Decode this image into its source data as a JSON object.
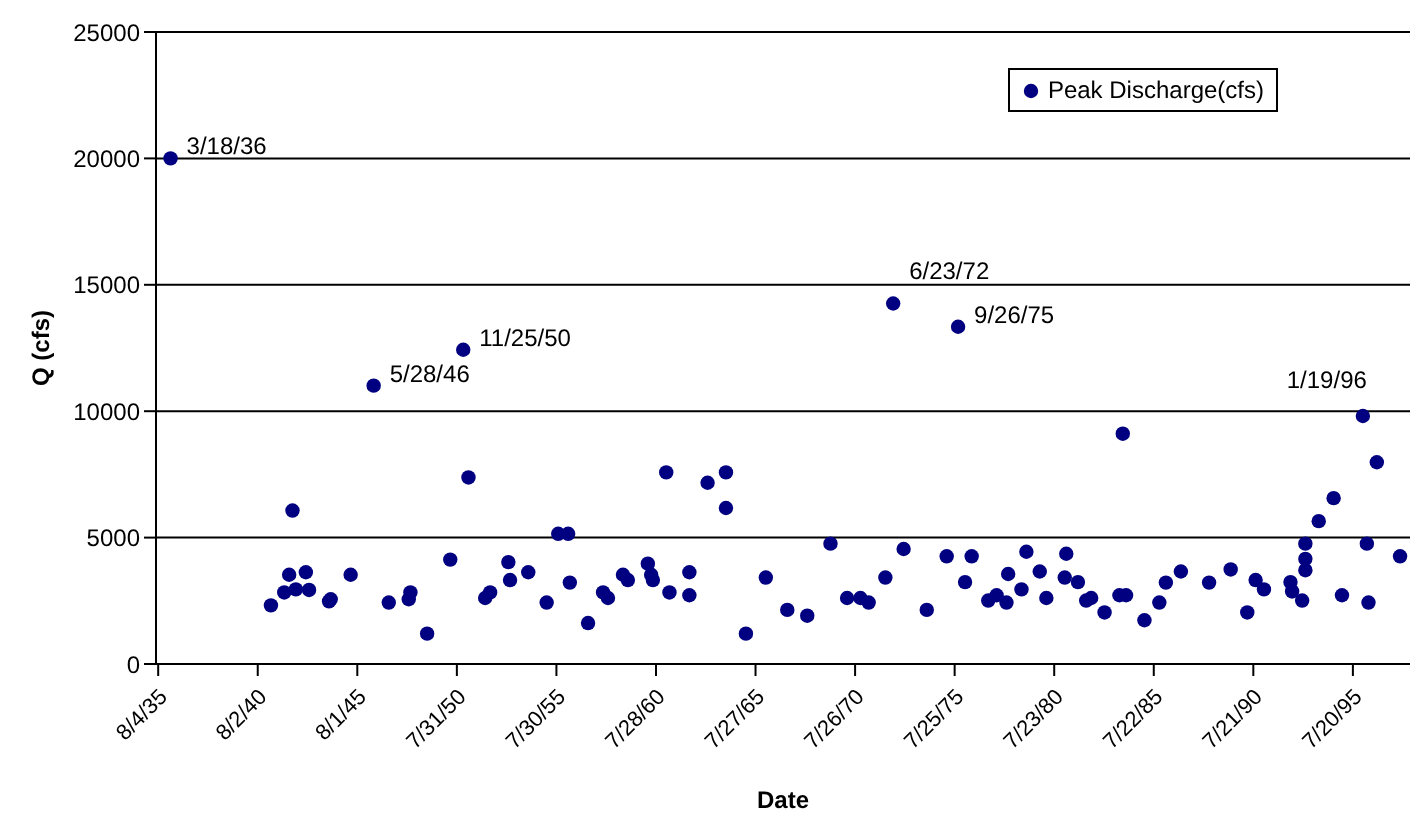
{
  "chart_data": {
    "type": "scatter",
    "xlabel": "Date",
    "ylabel": "Q (cfs)",
    "xlim": [
      "1935-06-25",
      "1998-06-01"
    ],
    "ylim": [
      0,
      25000
    ],
    "xticks": [
      {
        "value": "1935-08-04",
        "label": "8/4/35"
      },
      {
        "value": "1940-08-02",
        "label": "8/2/40"
      },
      {
        "value": "1945-08-01",
        "label": "8/1/45"
      },
      {
        "value": "1950-07-31",
        "label": "7/31/50"
      },
      {
        "value": "1955-07-30",
        "label": "7/30/55"
      },
      {
        "value": "1960-07-28",
        "label": "7/28/60"
      },
      {
        "value": "1965-07-27",
        "label": "7/27/65"
      },
      {
        "value": "1970-07-26",
        "label": "7/26/70"
      },
      {
        "value": "1975-07-25",
        "label": "7/25/75"
      },
      {
        "value": "1980-07-23",
        "label": "7/23/80"
      },
      {
        "value": "1985-07-22",
        "label": "7/22/85"
      },
      {
        "value": "1990-07-21",
        "label": "7/21/90"
      },
      {
        "value": "1995-07-20",
        "label": "7/20/95"
      }
    ],
    "yticks": [
      0,
      5000,
      10000,
      15000,
      20000,
      25000
    ],
    "grid": "y",
    "legend": "top right",
    "marker": "circle",
    "series": [
      {
        "name": "Peak Discharge(cfs)",
        "color": "#000080",
        "x": [
          "1936-03-18",
          "1941-04",
          "1941-12",
          "1942-03",
          "1942-05",
          "1942-07",
          "1943-01",
          "1943-03",
          "1944-03",
          "1944-04",
          "1945-04",
          "1946-05-28",
          "1947-03",
          "1948-03",
          "1948-04",
          "1949-02",
          "1950-04",
          "1950-11-25",
          "1951-03",
          "1952-01",
          "1952-04",
          "1953-03",
          "1953-04",
          "1954-03",
          "1955-02",
          "1955-09",
          "1956-03",
          "1956-04",
          "1957-03",
          "1957-12",
          "1958-03",
          "1958-12",
          "1959-03",
          "1960-03",
          "1960-05",
          "1960-06",
          "1961-02",
          "1961-04",
          "1962-04",
          "1962-04",
          "1963-03",
          "1964-02",
          "1964-02",
          "1965-02",
          "1966-02",
          "1967-03",
          "1968-03",
          "1969-05",
          "1970-03",
          "1970-11",
          "1971-04",
          "1972-02",
          "1972-06-23",
          "1973-01",
          "1974-03",
          "1975-03",
          "1975-09-26",
          "1976-02",
          "1976-06",
          "1977-04",
          "1977-09",
          "1978-03",
          "1978-04",
          "1978-12",
          "1979-03",
          "1979-11",
          "1980-03",
          "1981-02",
          "1981-03",
          "1981-10",
          "1982-03",
          "1982-06",
          "1983-02",
          "1983-11",
          "1984-01",
          "1984-03",
          "1985-02",
          "1985-11",
          "1986-03",
          "1986-12",
          "1988-05",
          "1989-06",
          "1990-04",
          "1990-09",
          "1991-02",
          "1992-06",
          "1992-07",
          "1993-01",
          "1993-03",
          "1993-03",
          "1993-03",
          "1993-11",
          "1994-08",
          "1995-01",
          "1996-01-19",
          "1996-04",
          "1996-05",
          "1996-10",
          "1997-12"
        ],
        "values": [
          20000,
          2320,
          2830,
          3530,
          6070,
          2950,
          3630,
          2930,
          2480,
          2560,
          3530,
          11010,
          2430,
          2560,
          2830,
          1200,
          4130,
          12430,
          7380,
          2610,
          2830,
          4030,
          3320,
          3630,
          2430,
          5150,
          5150,
          3220,
          1620,
          2830,
          2610,
          3530,
          3320,
          3970,
          3530,
          3320,
          7580,
          2830,
          3630,
          2720,
          7170,
          7580,
          6170,
          1200,
          3420,
          2140,
          1910,
          4760,
          2610,
          2610,
          2430,
          3420,
          14260,
          4550,
          2140,
          4260,
          13340,
          3240,
          4260,
          2510,
          2720,
          2430,
          3560,
          2950,
          4440,
          3660,
          2610,
          3420,
          4360,
          3240,
          2510,
          2610,
          2040,
          2720,
          9110,
          2720,
          1730,
          2430,
          3220,
          3660,
          3220,
          3740,
          2040,
          3320,
          2950,
          3240,
          2870,
          2510,
          3710,
          4160,
          4760,
          5650,
          6560,
          2720,
          9810,
          4760,
          2430,
          7980,
          4260
        ]
      }
    ],
    "annotations": [
      {
        "text": "3/18/36",
        "x": "1936-03-18",
        "y": 20000
      },
      {
        "text": "5/28/46",
        "x": "1946-05-28",
        "y": 11010
      },
      {
        "text": "11/25/50",
        "x": "1950-11-25",
        "y": 12430
      },
      {
        "text": "6/23/72",
        "x": "1972-06-23",
        "y": 14260
      },
      {
        "text": "9/26/75",
        "x": "1975-09-26",
        "y": 13340
      },
      {
        "text": "1/19/96",
        "x": "1996-01-19",
        "y": 9810
      }
    ]
  }
}
